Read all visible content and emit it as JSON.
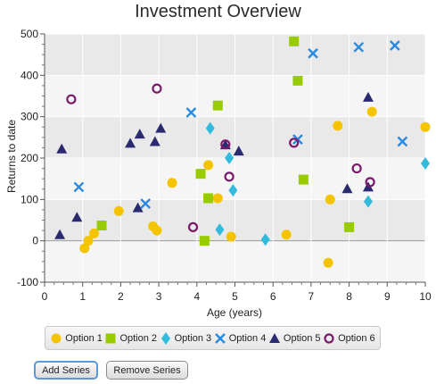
{
  "chart_data": {
    "type": "scatter",
    "title": "Investment Overview",
    "xlabel": "Age (years)",
    "ylabel": "Returns to date",
    "xlim": [
      0,
      10
    ],
    "ylim": [
      -100,
      500
    ],
    "xticks": [
      0,
      1,
      2,
      3,
      4,
      5,
      6,
      7,
      8,
      9,
      10
    ],
    "yticks": [
      -100,
      0,
      100,
      200,
      300,
      400,
      500
    ],
    "grid": true,
    "legend_position": "bottom",
    "series": [
      {
        "name": "Option 1",
        "marker": "circle",
        "color": "#f5c400",
        "points": [
          [
            1.05,
            -18
          ],
          [
            1.15,
            0
          ],
          [
            1.3,
            18
          ],
          [
            1.95,
            72
          ],
          [
            2.85,
            35
          ],
          [
            2.95,
            25
          ],
          [
            3.35,
            140
          ],
          [
            4.3,
            183
          ],
          [
            4.55,
            103
          ],
          [
            4.9,
            10
          ],
          [
            6.35,
            15
          ],
          [
            7.45,
            -53
          ],
          [
            7.5,
            100
          ],
          [
            7.7,
            278
          ],
          [
            8.6,
            312
          ],
          [
            10.0,
            275
          ]
        ]
      },
      {
        "name": "Option 2",
        "marker": "square",
        "color": "#99cc00",
        "points": [
          [
            1.5,
            37
          ],
          [
            4.1,
            162
          ],
          [
            4.2,
            0
          ],
          [
            4.3,
            103
          ],
          [
            4.55,
            327
          ],
          [
            6.55,
            482
          ],
          [
            6.65,
            387
          ],
          [
            6.8,
            148
          ],
          [
            8.0,
            33
          ]
        ]
      },
      {
        "name": "Option 3",
        "marker": "diamond",
        "color": "#33bbdd",
        "points": [
          [
            4.35,
            272
          ],
          [
            4.6,
            27
          ],
          [
            4.85,
            200
          ],
          [
            4.95,
            122
          ],
          [
            5.8,
            3
          ],
          [
            8.5,
            95
          ],
          [
            10.0,
            187
          ]
        ]
      },
      {
        "name": "Option 4",
        "marker": "cross",
        "color": "#2a8ae0",
        "points": [
          [
            0.9,
            130
          ],
          [
            2.65,
            90
          ],
          [
            3.85,
            310
          ],
          [
            6.65,
            245
          ],
          [
            7.05,
            453
          ],
          [
            8.25,
            468
          ],
          [
            9.2,
            472
          ],
          [
            9.4,
            240
          ]
        ]
      },
      {
        "name": "Option 5",
        "marker": "triangle",
        "color": "#2a2a70",
        "points": [
          [
            0.4,
            15
          ],
          [
            0.45,
            222
          ],
          [
            0.85,
            57
          ],
          [
            2.25,
            236
          ],
          [
            2.45,
            80
          ],
          [
            2.5,
            258
          ],
          [
            2.9,
            240
          ],
          [
            3.05,
            272
          ],
          [
            4.75,
            232
          ],
          [
            5.1,
            217
          ],
          [
            7.95,
            126
          ],
          [
            8.5,
            347
          ],
          [
            8.5,
            130
          ]
        ]
      },
      {
        "name": "Option 6",
        "marker": "ring",
        "color": "#7a1a6a",
        "points": [
          [
            0.7,
            342
          ],
          [
            2.95,
            368
          ],
          [
            3.9,
            33
          ],
          [
            4.75,
            233
          ],
          [
            4.85,
            155
          ],
          [
            6.55,
            237
          ],
          [
            8.2,
            175
          ],
          [
            8.55,
            142
          ]
        ]
      }
    ]
  },
  "controls": {
    "add_label": "Add Series",
    "remove_label": "Remove Series"
  }
}
